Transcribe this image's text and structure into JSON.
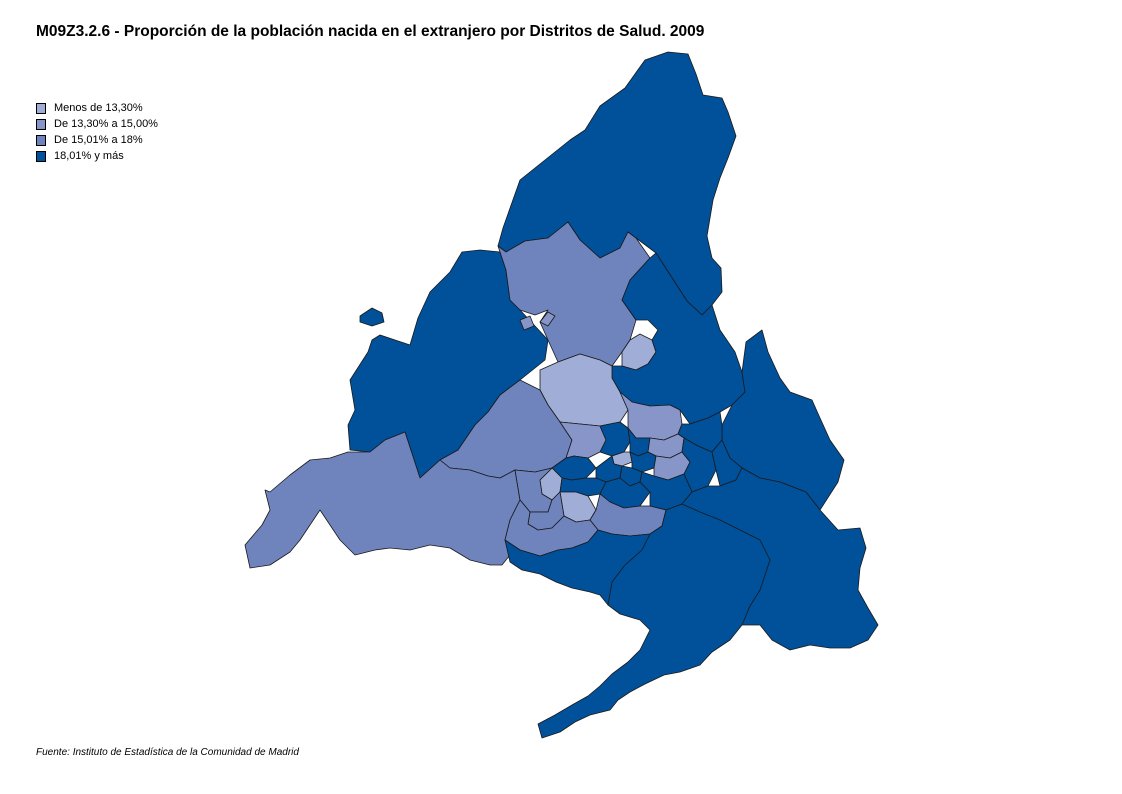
{
  "title": "M09Z3.2.6 - Proporción de la población nacida en el extranjero por Distritos de Salud. 2009",
  "legend": [
    {
      "label": "Menos de 13,30%",
      "color": "#9fadd7"
    },
    {
      "label": "De 13,30% a 15,00%",
      "color": "#8795c9"
    },
    {
      "label": "De 15,01% a 18%",
      "color": "#6f83bd"
    },
    {
      "label": "18,01% y más",
      "color": "#00509a"
    }
  ],
  "source": "Fuente: Instituto de Estadística de la Comunidad de Madrid",
  "colors": {
    "class_1": "#9fadd7",
    "class_2": "#8795c9",
    "class_3": "#6f83bd",
    "class_4": "#00509a"
  }
}
